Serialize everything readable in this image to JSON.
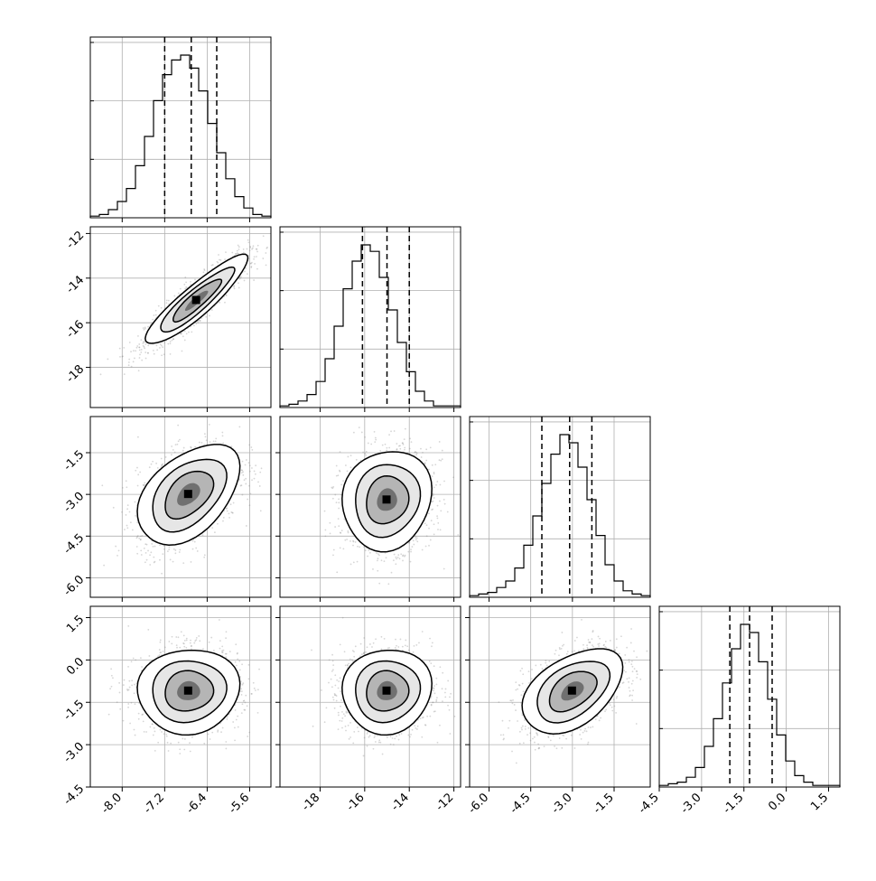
{
  "chart_data": {
    "type": "corner",
    "grid": true,
    "quantile_lines": "dashed",
    "parameters": [
      {
        "ticks": [
          -8.0,
          -7.2,
          -6.4,
          -5.6
        ],
        "tick_labels": [
          "-8.0",
          "-7.2",
          "-6.4",
          "-5.6"
        ],
        "range": [
          -8.6,
          -5.2
        ],
        "quantiles": [
          -7.2,
          -6.7,
          -6.22
        ],
        "mean": -6.7,
        "sd": 0.48
      },
      {
        "ticks": [
          -18,
          -16,
          -14,
          -12
        ],
        "tick_labels": [
          "-18",
          "-16",
          "-14",
          "-12"
        ],
        "range": [
          -19.8,
          -11.7
        ],
        "quantiles": [
          -16.1,
          -15.0,
          -14.0
        ],
        "mean": -15.0,
        "sd": 1.0
      },
      {
        "ticks": [
          -6.0,
          -4.5,
          -3.0,
          -1.5
        ],
        "tick_labels": [
          "-6.0",
          "-4.5",
          "-3.0",
          "-1.5"
        ],
        "range": [
          -6.7,
          -0.2
        ],
        "quantiles": [
          -4.1,
          -3.1,
          -2.3
        ],
        "mean": -3.1,
        "sd": 0.9
      },
      {
        "ticks": [
          -4.5,
          -3.0,
          -1.5,
          0.0,
          1.5
        ],
        "tick_labels": [
          "-4.5",
          "-3.0",
          "-1.5",
          "0.0",
          "1.5"
        ],
        "range": [
          -4.5,
          1.9
        ],
        "quantiles": [
          -2.0,
          -1.3,
          -0.5
        ],
        "mean": -1.2,
        "sd": 0.75
      }
    ],
    "histograms": [
      {
        "param": 0,
        "values": [
          1,
          2,
          5,
          10,
          18,
          32,
          50,
          72,
          88,
          97,
          100,
          92,
          78,
          58,
          40,
          24,
          13,
          6,
          2,
          1
        ]
      },
      {
        "param": 1,
        "values": [
          1,
          2,
          4,
          8,
          16,
          30,
          50,
          73,
          90,
          100,
          96,
          80,
          60,
          40,
          22,
          10,
          4,
          1,
          1,
          1
        ]
      },
      {
        "param": 2,
        "values": [
          1,
          2,
          3,
          6,
          10,
          18,
          32,
          50,
          70,
          88,
          100,
          95,
          80,
          60,
          38,
          20,
          10,
          4,
          2,
          1
        ]
      },
      {
        "param": 3,
        "values": [
          1,
          2,
          3,
          6,
          12,
          25,
          42,
          64,
          85,
          100,
          95,
          77,
          54,
          32,
          16,
          7,
          3,
          1,
          1,
          1
        ]
      }
    ],
    "pairs": [
      {
        "x": 1,
        "y": 0,
        "correlation": 0.9,
        "peak": [
          -6.6,
          -15.0
        ]
      },
      {
        "x": 2,
        "y": 0,
        "correlation": 0.45,
        "peak": [
          -6.75,
          -3.0
        ]
      },
      {
        "x": 2,
        "y": 1,
        "correlation": 0.1,
        "peak": [
          -15.0,
          -3.2
        ]
      },
      {
        "x": 3,
        "y": 0,
        "correlation": 0.05,
        "peak": [
          -6.75,
          -1.1
        ]
      },
      {
        "x": 3,
        "y": 1,
        "correlation": 0.05,
        "peak": [
          -15.0,
          -1.1
        ]
      },
      {
        "x": 3,
        "y": 2,
        "correlation": 0.45,
        "peak": [
          -3.0,
          -1.1
        ]
      }
    ]
  }
}
